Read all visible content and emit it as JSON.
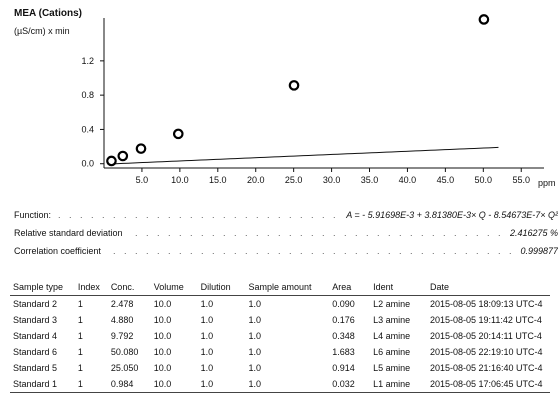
{
  "chart_data": {
    "type": "scatter",
    "title": "MEA (Cations)",
    "ylabel": "(µS/cm) x min",
    "xlabel": "ppm",
    "xlim": [
      0,
      58
    ],
    "ylim": [
      -0.05,
      1.7
    ],
    "x_ticks": [
      "5.0",
      "10.0",
      "15.0",
      "20.0",
      "25.0",
      "30.0",
      "35.0",
      "40.0",
      "45.0",
      "50.0",
      "55.0"
    ],
    "x_tick_values": [
      5,
      10,
      15,
      20,
      25,
      30,
      35,
      40,
      45,
      50,
      55
    ],
    "y_ticks": [
      "0.0",
      "0.4",
      "0.8",
      "1.2"
    ],
    "y_tick_values": [
      0,
      0.4,
      0.8,
      1.2
    ],
    "points": [
      {
        "x": 0.984,
        "y": 0.032
      },
      {
        "x": 2.478,
        "y": 0.09
      },
      {
        "x": 4.88,
        "y": 0.176
      },
      {
        "x": 9.792,
        "y": 0.348
      },
      {
        "x": 25.05,
        "y": 0.914
      },
      {
        "x": 50.08,
        "y": 1.683
      }
    ],
    "fit": {
      "a": -0.00591698,
      "b": 0.0038138,
      "c": -8.54673e-07
    }
  },
  "info": [
    {
      "label": "Function:",
      "value": "A = - 5.91698E-3 + 3.81380E-3× Q - 8.54673E-7× Q²"
    },
    {
      "label": "Relative standard deviation",
      "value": "2.416275 %"
    },
    {
      "label": "Correlation coefficient",
      "value": "0.999877"
    }
  ],
  "table": {
    "headers": [
      "Sample type",
      "Index",
      "Conc.",
      "Volume",
      "Dilution",
      "Sample amount",
      "Area",
      "Ident",
      "Date"
    ],
    "rows": [
      [
        "Standard 2",
        "1",
        "2.478",
        "10.0",
        "1.0",
        "1.0",
        "0.090",
        "L2 amine",
        "2015-08-05 18:09:13 UTC-4"
      ],
      [
        "Standard 3",
        "1",
        "4.880",
        "10.0",
        "1.0",
        "1.0",
        "0.176",
        "L3 amine",
        "2015-08-05 19:11:42 UTC-4"
      ],
      [
        "Standard 4",
        "1",
        "9.792",
        "10.0",
        "1.0",
        "1.0",
        "0.348",
        "L4 amine",
        "2015-08-05 20:14:11 UTC-4"
      ],
      [
        "Standard 6",
        "1",
        "50.080",
        "10.0",
        "1.0",
        "1.0",
        "1.683",
        "L6 amine",
        "2015-08-05 22:19:10 UTC-4"
      ],
      [
        "Standard 5",
        "1",
        "25.050",
        "10.0",
        "1.0",
        "1.0",
        "0.914",
        "L5 amine",
        "2015-08-05 21:16:40 UTC-4"
      ],
      [
        "Standard 1",
        "1",
        "0.984",
        "10.0",
        "1.0",
        "1.0",
        "0.032",
        "L1 amine",
        "2015-08-05 17:06:45 UTC-4"
      ]
    ]
  }
}
